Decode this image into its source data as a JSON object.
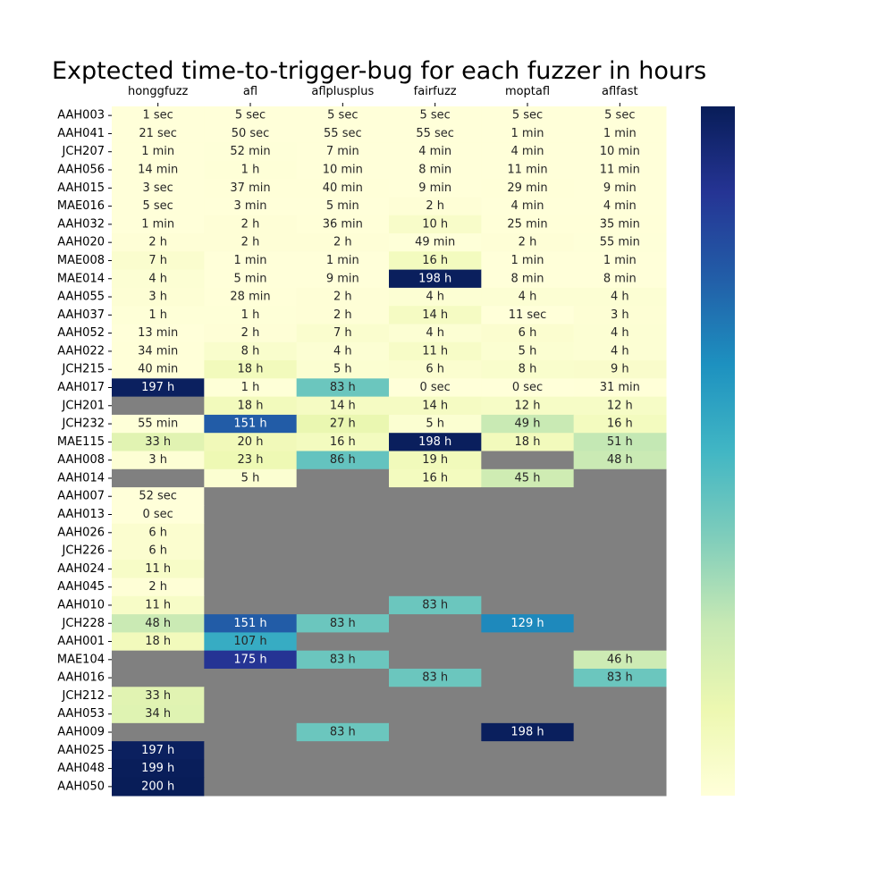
{
  "chart_data": {
    "type": "heatmap",
    "title": "Exptected time-to-trigger-bug for each fuzzer in hours",
    "columns": [
      "honggfuzz",
      "afl",
      "aflplusplus",
      "fairfuzz",
      "moptafl",
      "aflfast"
    ],
    "rows": [
      "AAH003",
      "AAH041",
      "JCH207",
      "AAH056",
      "AAH015",
      "MAE016",
      "AAH032",
      "AAH020",
      "MAE008",
      "MAE014",
      "AAH055",
      "AAH037",
      "AAH052",
      "AAH022",
      "JCH215",
      "AAH017",
      "JCH201",
      "JCH232",
      "MAE115",
      "AAH008",
      "AAH014",
      "AAH007",
      "AAH013",
      "AAH026",
      "JCH226",
      "AAH024",
      "AAH045",
      "AAH010",
      "JCH228",
      "AAH001",
      "MAE104",
      "AAH016",
      "JCH212",
      "AAH053",
      "AAH009",
      "AAH025",
      "AAH048",
      "AAH050"
    ],
    "labels": [
      [
        "1 sec",
        "5 sec",
        "5 sec",
        "5 sec",
        "5 sec",
        "5 sec"
      ],
      [
        "21 sec",
        "50 sec",
        "55 sec",
        "55 sec",
        "1 min",
        "1 min"
      ],
      [
        "1 min",
        "52 min",
        "7 min",
        "4 min",
        "4 min",
        "10 min"
      ],
      [
        "14 min",
        "1 h",
        "10 min",
        "8 min",
        "11 min",
        "11 min"
      ],
      [
        "3 sec",
        "37 min",
        "40 min",
        "9 min",
        "29 min",
        "9 min"
      ],
      [
        "5 sec",
        "3 min",
        "5 min",
        "2 h",
        "4 min",
        "4 min"
      ],
      [
        "1 min",
        "2 h",
        "36 min",
        "10 h",
        "25 min",
        "35 min"
      ],
      [
        "2 h",
        "2 h",
        "2 h",
        "49 min",
        "2 h",
        "55 min"
      ],
      [
        "7 h",
        "1 min",
        "1 min",
        "16 h",
        "1 min",
        "1 min"
      ],
      [
        "4 h",
        "5 min",
        "9 min",
        "198 h",
        "8 min",
        "8 min"
      ],
      [
        "3 h",
        "28 min",
        "2 h",
        "4 h",
        "4 h",
        "4 h"
      ],
      [
        "1 h",
        "1 h",
        "2 h",
        "14 h",
        "11 sec",
        "3 h"
      ],
      [
        "13 min",
        "2 h",
        "7 h",
        "4 h",
        "6 h",
        "4 h"
      ],
      [
        "34 min",
        "8 h",
        "4 h",
        "11 h",
        "5 h",
        "4 h"
      ],
      [
        "40 min",
        "18 h",
        "5 h",
        "6 h",
        "8 h",
        "9 h"
      ],
      [
        "197 h",
        "1 h",
        "83 h",
        "0 sec",
        "0 sec",
        "31 min"
      ],
      [
        null,
        "18 h",
        "14 h",
        "14 h",
        "12 h",
        "12 h"
      ],
      [
        "55 min",
        "151 h",
        "27 h",
        "5 h",
        "49 h",
        "16 h"
      ],
      [
        "33 h",
        "20 h",
        "16 h",
        "198 h",
        "18 h",
        "51 h"
      ],
      [
        "3 h",
        "23 h",
        "86 h",
        "19 h",
        null,
        "48 h"
      ],
      [
        null,
        "5 h",
        null,
        "16 h",
        "45 h",
        null
      ],
      [
        "52 sec",
        null,
        null,
        null,
        null,
        null
      ],
      [
        "0 sec",
        null,
        null,
        null,
        null,
        null
      ],
      [
        "6 h",
        null,
        null,
        null,
        null,
        null
      ],
      [
        "6 h",
        null,
        null,
        null,
        null,
        null
      ],
      [
        "11 h",
        null,
        null,
        null,
        null,
        null
      ],
      [
        "2 h",
        null,
        null,
        null,
        null,
        null
      ],
      [
        "11 h",
        null,
        null,
        "83 h",
        null,
        null
      ],
      [
        "48 h",
        "151 h",
        "83 h",
        null,
        "129 h",
        null
      ],
      [
        "18 h",
        "107 h",
        null,
        null,
        null,
        null
      ],
      [
        null,
        "175 h",
        "83 h",
        null,
        null,
        "46 h"
      ],
      [
        null,
        null,
        null,
        "83 h",
        null,
        "83 h"
      ],
      [
        "33 h",
        null,
        null,
        null,
        null,
        null
      ],
      [
        "34 h",
        null,
        null,
        null,
        null,
        null
      ],
      [
        null,
        null,
        "83 h",
        null,
        "198 h",
        null
      ],
      [
        "197 h",
        null,
        null,
        null,
        null,
        null
      ],
      [
        "199 h",
        null,
        null,
        null,
        null,
        null
      ],
      [
        "200 h",
        null,
        null,
        null,
        null,
        null
      ]
    ],
    "values_hours": [
      [
        0.0003,
        0.0014,
        0.0014,
        0.0014,
        0.0014,
        0.0014
      ],
      [
        0.0058,
        0.0139,
        0.0153,
        0.0153,
        0.0167,
        0.0167
      ],
      [
        0.0167,
        0.8667,
        0.1167,
        0.0667,
        0.0667,
        0.1667
      ],
      [
        0.2333,
        1,
        0.1667,
        0.1333,
        0.1833,
        0.1833
      ],
      [
        0.0008,
        0.6167,
        0.6667,
        0.15,
        0.4833,
        0.15
      ],
      [
        0.0014,
        0.05,
        0.0833,
        2,
        0.0667,
        0.0667
      ],
      [
        0.0167,
        2,
        0.6,
        10,
        0.4167,
        0.5833
      ],
      [
        2,
        2,
        2,
        0.8167,
        2,
        0.9167
      ],
      [
        7,
        0.0167,
        0.0167,
        16,
        0.0167,
        0.0167
      ],
      [
        4,
        0.0833,
        0.15,
        198,
        0.1333,
        0.1333
      ],
      [
        3,
        0.4667,
        2,
        4,
        4,
        4
      ],
      [
        1,
        1,
        2,
        14,
        0.0031,
        3
      ],
      [
        0.2167,
        2,
        7,
        4,
        6,
        4
      ],
      [
        0.5667,
        8,
        4,
        11,
        5,
        4
      ],
      [
        0.6667,
        18,
        5,
        6,
        8,
        9
      ],
      [
        197,
        1,
        83,
        0,
        0,
        0.5167
      ],
      [
        null,
        18,
        14,
        14,
        12,
        12
      ],
      [
        0.9167,
        151,
        27,
        5,
        49,
        16
      ],
      [
        33,
        20,
        16,
        198,
        18,
        51
      ],
      [
        3,
        23,
        86,
        19,
        null,
        48
      ],
      [
        null,
        5,
        null,
        16,
        45,
        null
      ],
      [
        0.0144,
        null,
        null,
        null,
        null,
        null
      ],
      [
        0,
        null,
        null,
        null,
        null,
        null
      ],
      [
        6,
        null,
        null,
        null,
        null,
        null
      ],
      [
        6,
        null,
        null,
        null,
        null,
        null
      ],
      [
        11,
        null,
        null,
        null,
        null,
        null
      ],
      [
        2,
        null,
        null,
        null,
        null,
        null
      ],
      [
        11,
        null,
        null,
        83,
        null,
        null
      ],
      [
        48,
        151,
        83,
        null,
        129,
        null
      ],
      [
        18,
        107,
        null,
        null,
        null,
        null
      ],
      [
        null,
        175,
        83,
        null,
        null,
        46
      ],
      [
        null,
        null,
        null,
        83,
        null,
        83
      ],
      [
        33,
        null,
        null,
        null,
        null,
        null
      ],
      [
        34,
        null,
        null,
        null,
        null,
        null
      ],
      [
        null,
        null,
        83,
        null,
        198,
        null
      ],
      [
        197,
        null,
        null,
        null,
        null,
        null
      ],
      [
        199,
        null,
        null,
        null,
        null,
        null
      ],
      [
        200,
        null,
        null,
        null,
        null,
        null
      ]
    ],
    "vmin": 0,
    "vmax": 200,
    "colormap": "YlGnBu",
    "colormap_stops": [
      "#ffffd9",
      "#edf8b1",
      "#c7e9b4",
      "#7fcdbb",
      "#41b6c4",
      "#1d91c0",
      "#225ea8",
      "#253494",
      "#081d58"
    ],
    "missing_color": "#808080",
    "light_text_color": "#ffffff",
    "dark_text_color": "#262626",
    "xaxis_position": "top",
    "colorbar": true,
    "colorbar_ticks": false
  }
}
